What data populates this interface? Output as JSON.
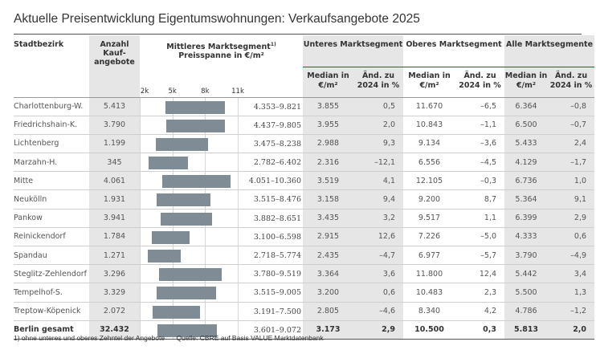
{
  "title": "Aktuelle Preisentwicklung Eigentumswohnungen: Verkaufsangebote 2025",
  "headers": {
    "district": "Stadtbezirk",
    "count_line1": "Anzahl",
    "count_line2": "Kauf-",
    "count_line3": "angebote",
    "range_line1": "Mittleres Marktsegment",
    "range_footnote_mark": "1)",
    "range_line2": "Preisspanne in €/m²",
    "lower": "Unteres Marktsegment",
    "upper": "Oberes Marktsegment",
    "all": "Alle Marktsegmente",
    "median_line1": "Median in",
    "median_line2": "€/m²",
    "change_line1": "Änd. zu",
    "change_line2": "2024 in %"
  },
  "axis": {
    "ticks": [
      "2k",
      "5k",
      "8k",
      "11k"
    ],
    "tick_values": [
      2000,
      5000,
      8000,
      11000
    ],
    "min": 2000,
    "max": 11000
  },
  "rows": [
    {
      "district": "Charlottenburg-W.",
      "count": "5.413",
      "low": 4353,
      "high": 9821,
      "range": "4.353–9.821",
      "lower_median": "3.855",
      "lower_change": "0,5",
      "upper_median": "11.670",
      "upper_change": "–6,5",
      "all_median": "6.364",
      "all_change": "–0,8"
    },
    {
      "district": "Friedrichshain-K.",
      "count": "3.790",
      "low": 4437,
      "high": 9805,
      "range": "4.437–9.805",
      "lower_median": "3.955",
      "lower_change": "2,0",
      "upper_median": "10.843",
      "upper_change": "–1,1",
      "all_median": "6.500",
      "all_change": "–0,7"
    },
    {
      "district": "Lichtenberg",
      "count": "1.199",
      "low": 3475,
      "high": 8238,
      "range": "3.475–8.238",
      "lower_median": "2.988",
      "lower_change": "9,3",
      "upper_median": "9.134",
      "upper_change": "–3,6",
      "all_median": "5.433",
      "all_change": "2,4"
    },
    {
      "district": "Marzahn-H.",
      "count": "345",
      "low": 2782,
      "high": 6402,
      "range": "2.782–6.402",
      "lower_median": "2.316",
      "lower_change": "–12,1",
      "upper_median": "6.556",
      "upper_change": "–4,5",
      "all_median": "4.129",
      "all_change": "–1,7"
    },
    {
      "district": "Mitte",
      "count": "4.061",
      "low": 4051,
      "high": 10360,
      "range": "4.051–10.360",
      "lower_median": "3.519",
      "lower_change": "4,1",
      "upper_median": "12.105",
      "upper_change": "–0,3",
      "all_median": "6.736",
      "all_change": "1,0"
    },
    {
      "district": "Neukölln",
      "count": "1.931",
      "low": 3515,
      "high": 8476,
      "range": "3.515–8.476",
      "lower_median": "3.158",
      "lower_change": "9,4",
      "upper_median": "9.200",
      "upper_change": "8,7",
      "all_median": "5.364",
      "all_change": "9,1"
    },
    {
      "district": "Pankow",
      "count": "3.941",
      "low": 3882,
      "high": 8651,
      "range": "3.882–8.651",
      "lower_median": "3.435",
      "lower_change": "3,2",
      "upper_median": "9.517",
      "upper_change": "1,1",
      "all_median": "6.399",
      "all_change": "2,9"
    },
    {
      "district": "Reinickendorf",
      "count": "1.784",
      "low": 3100,
      "high": 6598,
      "range": "3.100–6.598",
      "lower_median": "2.915",
      "lower_change": "12,6",
      "upper_median": "7.226",
      "upper_change": "–5,0",
      "all_median": "4.333",
      "all_change": "0,6"
    },
    {
      "district": "Spandau",
      "count": "1.271",
      "low": 2718,
      "high": 5774,
      "range": "2.718–5.774",
      "lower_median": "2.435",
      "lower_change": "–4,7",
      "upper_median": "6.977",
      "upper_change": "–5,7",
      "all_median": "3.790",
      "all_change": "–4,9"
    },
    {
      "district": "Steglitz-Zehlendorf",
      "count": "3.296",
      "low": 3780,
      "high": 9519,
      "range": "3.780–9.519",
      "lower_median": "3.364",
      "lower_change": "3,6",
      "upper_median": "11.800",
      "upper_change": "12,4",
      "all_median": "5.442",
      "all_change": "3,4"
    },
    {
      "district": "Tempelhof-S.",
      "count": "3.329",
      "low": 3515,
      "high": 9005,
      "range": "3.515–9.005",
      "lower_median": "3.200",
      "lower_change": "0,6",
      "upper_median": "10.483",
      "upper_change": "2,3",
      "all_median": "5.500",
      "all_change": "1,3"
    },
    {
      "district": "Treptow-Köpenick",
      "count": "2.072",
      "low": 3191,
      "high": 7500,
      "range": "3.191–7.500",
      "lower_median": "2.805",
      "lower_change": "–4,6",
      "upper_median": "8.340",
      "upper_change": "4,2",
      "all_median": "4.786",
      "all_change": "–1,2"
    }
  ],
  "total": {
    "district": "Berlin gesamt",
    "count": "32.432",
    "low": 3601,
    "high": 9072,
    "range": "3.601–9.072",
    "lower_median": "3.173",
    "lower_change": "2,9",
    "upper_median": "10.500",
    "upper_change": "0,3",
    "all_median": "5.813",
    "all_change": "2,0"
  },
  "footnote": "1) ohne unteres und oberes Zehntel der Angebote",
  "source": "Quelle: CBRE auf Basis VALUE Marktdatenbank",
  "colors": {
    "bar": "#7f8c95",
    "accent_rule": "#c8102e",
    "shade": "#e6e6e6"
  }
}
